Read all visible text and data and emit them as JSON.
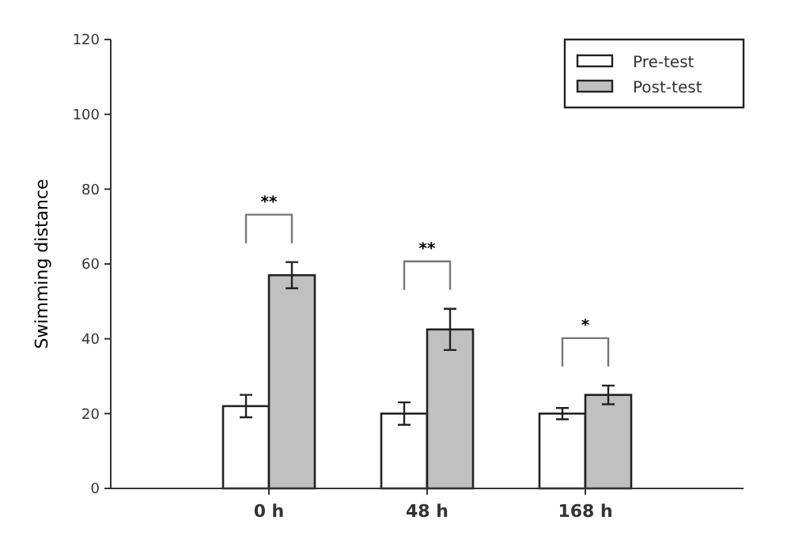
{
  "chart_data": {
    "type": "bar",
    "ylabel": "Swimming distance",
    "categories": [
      "0 h",
      "48 h",
      "168 h"
    ],
    "series": [
      {
        "name": "Pre-test",
        "color": "#ffffff",
        "values": [
          22,
          20,
          20
        ],
        "errors": [
          3,
          3,
          1.5
        ]
      },
      {
        "name": "Post-test",
        "color": "#c0c0c0",
        "values": [
          57,
          42.5,
          25
        ],
        "errors": [
          3.5,
          5.5,
          2.5
        ]
      }
    ],
    "ylim": [
      0,
      120
    ],
    "yticks": [
      0,
      20,
      40,
      60,
      80,
      100,
      120
    ],
    "legend": "top right",
    "annotations": [
      "**",
      "**",
      "*"
    ]
  }
}
